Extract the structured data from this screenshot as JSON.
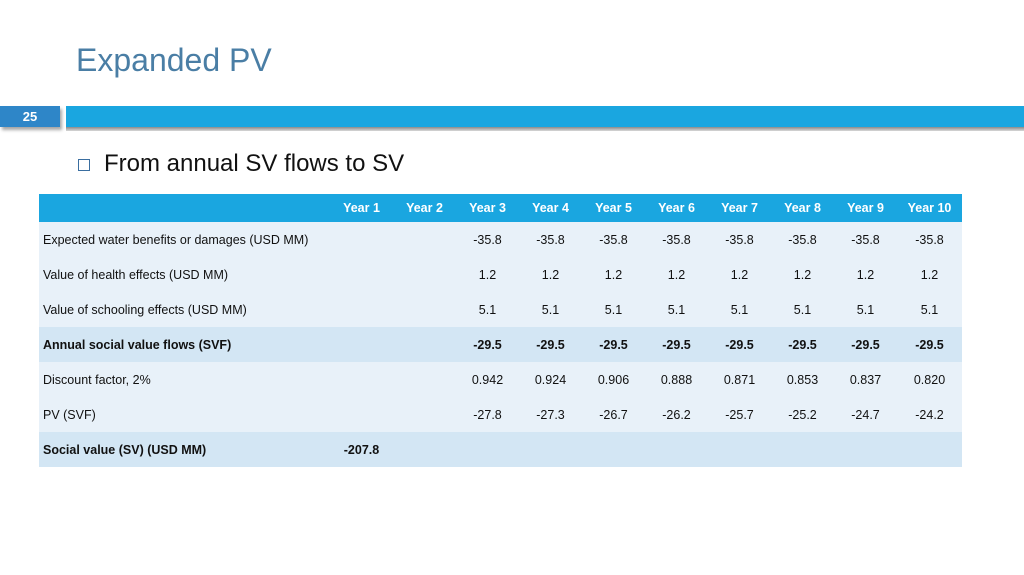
{
  "slide": {
    "title": "Expanded PV",
    "page_number": "25",
    "bullet": "From annual SV flows to SV"
  },
  "table": {
    "headers": [
      "",
      "Year 1",
      "Year 2",
      "Year 3",
      "Year 4",
      "Year 5",
      "Year 6",
      "Year 7",
      "Year 8",
      "Year 9",
      "Year 10"
    ],
    "rows": [
      {
        "label": "Expected water benefits or damages (USD MM)",
        "cells": [
          "",
          "",
          "-35.8",
          "-35.8",
          "-35.8",
          "-35.8",
          "-35.8",
          "-35.8",
          "-35.8",
          "-35.8"
        ]
      },
      {
        "label": "Value of health effects (USD MM)",
        "cells": [
          "",
          "",
          "1.2",
          "1.2",
          "1.2",
          "1.2",
          "1.2",
          "1.2",
          "1.2",
          "1.2"
        ]
      },
      {
        "label": "Value of schooling effects (USD MM)",
        "cells": [
          "",
          "",
          "5.1",
          "5.1",
          "5.1",
          "5.1",
          "5.1",
          "5.1",
          "5.1",
          "5.1"
        ]
      },
      {
        "label": "Annual social value flows (SVF)",
        "cells": [
          "",
          "",
          "-29.5",
          "-29.5",
          "-29.5",
          "-29.5",
          "-29.5",
          "-29.5",
          "-29.5",
          "-29.5"
        ]
      },
      {
        "label": "Discount factor, 2%",
        "cells": [
          "",
          "",
          "0.942",
          "0.924",
          "0.906",
          "0.888",
          "0.871",
          "0.853",
          "0.837",
          "0.820"
        ]
      },
      {
        "label": "PV (SVF)",
        "cells": [
          "",
          "",
          "-27.8",
          "-27.3",
          "-26.7",
          "-26.2",
          "-25.7",
          "-25.2",
          "-24.7",
          "-24.2"
        ]
      },
      {
        "label": "Social value (SV) (USD MM)",
        "cells": [
          "-207.8",
          "",
          "",
          "",
          "",
          "",
          "",
          "",
          "",
          ""
        ]
      }
    ]
  },
  "colors": {
    "title": "#4a7ea5",
    "header_bar": "#1aa6e0",
    "page_tab": "#2e86c8",
    "row_light": "#e8f1f9",
    "row_mid": "#d3e6f4"
  }
}
